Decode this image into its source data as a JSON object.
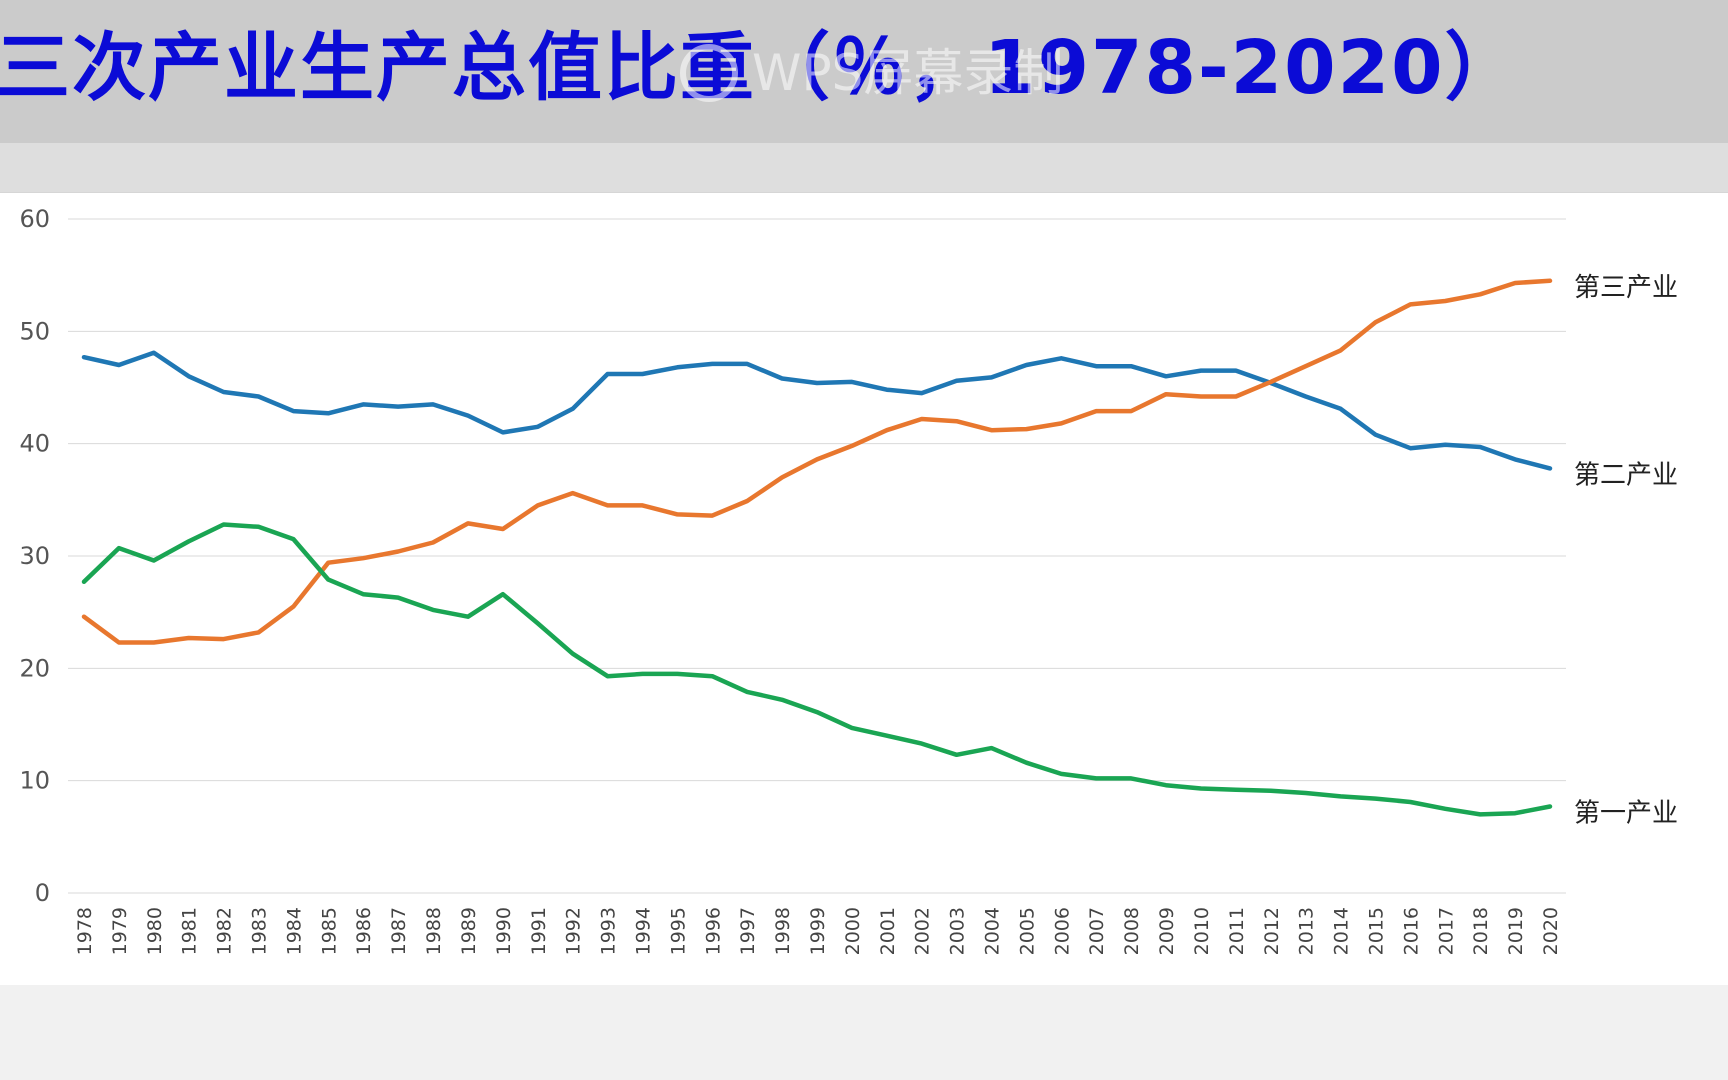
{
  "title": "三次产业生产总值比重（％，1978-2020）",
  "watermark": "WPS屏幕录制",
  "colors": {
    "title": "#0b0bd6",
    "secondary": "#1f77b4",
    "tertiary": "#e8772e",
    "primary": "#1aa553",
    "grid": "#d9d9d9"
  },
  "chart_data": {
    "type": "line",
    "title": "",
    "xlabel": "",
    "ylabel": "",
    "ylim": [
      0,
      60
    ],
    "yticks": [
      0,
      10,
      20,
      30,
      40,
      50,
      60
    ],
    "grid": true,
    "legend": "series labels at line ends (right)",
    "categories": [
      "1978",
      "1979",
      "1980",
      "1981",
      "1982",
      "1983",
      "1984",
      "1985",
      "1986",
      "1987",
      "1988",
      "1989",
      "1990",
      "1991",
      "1992",
      "1993",
      "1994",
      "1995",
      "1996",
      "1997",
      "1998",
      "1999",
      "2000",
      "2001",
      "2002",
      "2003",
      "2004",
      "2005",
      "2006",
      "2007",
      "2008",
      "2009",
      "2010",
      "2011",
      "2012",
      "2013",
      "2014",
      "2015",
      "2016",
      "2017",
      "2018",
      "2019",
      "2020"
    ],
    "series": [
      {
        "name": "第二产业",
        "color": "#1f77b4",
        "values": [
          47.7,
          47.0,
          48.1,
          46.0,
          44.6,
          44.2,
          42.9,
          42.7,
          43.5,
          43.3,
          43.5,
          42.5,
          41.0,
          41.5,
          43.1,
          46.2,
          46.2,
          46.8,
          47.1,
          47.1,
          45.8,
          45.4,
          45.5,
          44.8,
          44.5,
          45.6,
          45.9,
          47.0,
          47.6,
          46.9,
          46.9,
          46.0,
          46.5,
          46.5,
          45.4,
          44.2,
          43.1,
          40.8,
          39.6,
          39.9,
          39.7,
          38.6,
          37.8
        ]
      },
      {
        "name": "第三产业",
        "color": "#e8772e",
        "values": [
          24.6,
          22.3,
          22.3,
          22.7,
          22.6,
          23.2,
          25.5,
          29.4,
          29.8,
          30.4,
          31.2,
          32.9,
          32.4,
          34.5,
          35.6,
          34.5,
          34.5,
          33.7,
          33.6,
          34.9,
          37.0,
          38.6,
          39.8,
          41.2,
          42.2,
          42.0,
          41.2,
          41.3,
          41.8,
          42.9,
          42.9,
          44.4,
          44.2,
          44.2,
          45.5,
          46.9,
          48.3,
          50.8,
          52.4,
          52.7,
          53.3,
          54.3,
          54.5
        ]
      },
      {
        "name": "第一产业",
        "color": "#1aa553",
        "values": [
          27.7,
          30.7,
          29.6,
          31.3,
          32.8,
          32.6,
          31.5,
          27.9,
          26.6,
          26.3,
          25.2,
          24.6,
          26.6,
          24.0,
          21.3,
          19.3,
          19.5,
          19.5,
          19.3,
          17.9,
          17.2,
          16.1,
          14.7,
          14.0,
          13.3,
          12.3,
          12.9,
          11.6,
          10.6,
          10.2,
          10.2,
          9.6,
          9.3,
          9.2,
          9.1,
          8.9,
          8.6,
          8.4,
          8.1,
          7.5,
          7.0,
          7.1,
          7.7
        ]
      }
    ]
  }
}
